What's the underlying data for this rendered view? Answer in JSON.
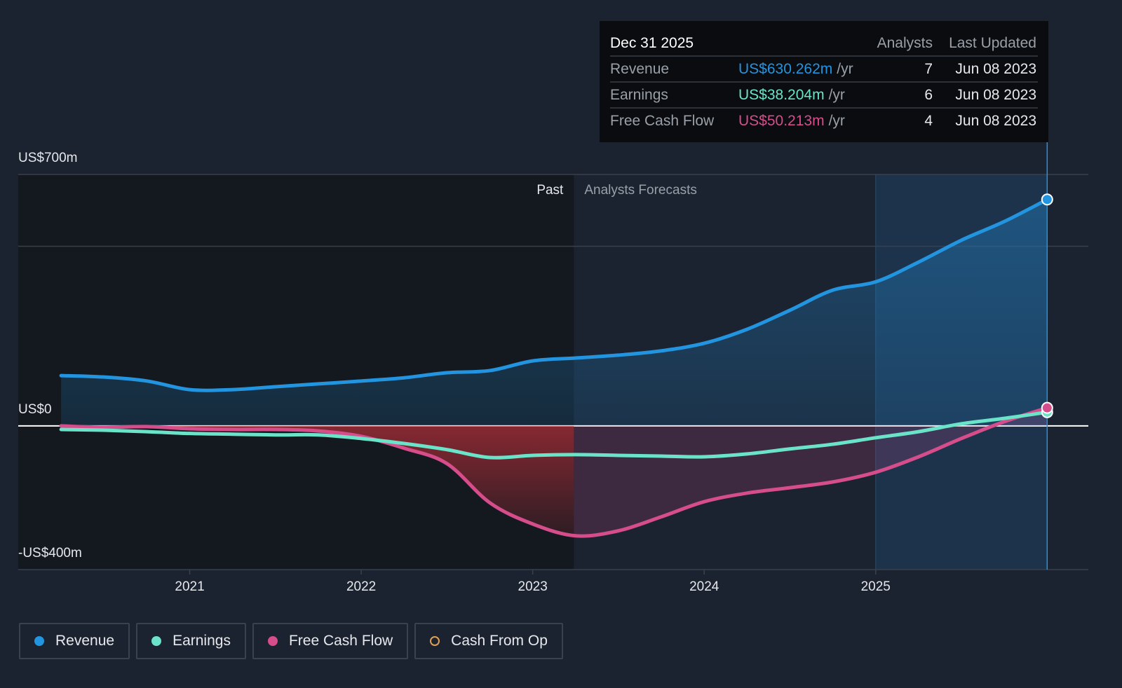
{
  "chart_data": {
    "type": "line",
    "x": [
      2020.25,
      2020.5,
      2020.75,
      2021,
      2021.25,
      2021.5,
      2021.75,
      2022,
      2022.25,
      2022.5,
      2022.75,
      2023,
      2023.25,
      2023.5,
      2023.75,
      2024,
      2024.25,
      2024.5,
      2024.75,
      2025,
      2025.25,
      2025.5,
      2025.75,
      2026
    ],
    "series": [
      {
        "name": "Revenue",
        "color": "#2394df",
        "area": true,
        "values": [
          140,
          136,
          125,
          101,
          101,
          109,
          117,
          125,
          134,
          148,
          154,
          181,
          189,
          197,
          209,
          230,
          269,
          322,
          378,
          401,
          456,
          517,
          569,
          630.262
        ]
      },
      {
        "name": "Earnings",
        "color": "#6be3c8",
        "values": [
          -10,
          -12,
          -16,
          -21,
          -23,
          -25,
          -25,
          -35,
          -49,
          -66,
          -88,
          -82,
          -80,
          -82,
          -84,
          -86,
          -78,
          -64,
          -51,
          -33,
          -16,
          6,
          21,
          38.204
        ]
      },
      {
        "name": "Free Cash Flow",
        "color": "#d64d8c",
        "area": true,
        "values": [
          0,
          -4,
          -2,
          -8,
          -10,
          -10,
          -14,
          -29,
          -62,
          -105,
          -214,
          -273,
          -306,
          -292,
          -253,
          -211,
          -187,
          -172,
          -156,
          -129,
          -86,
          -35,
          12,
          50.213
        ]
      },
      {
        "name": "Cash From Op",
        "color": "#e0a050",
        "values": [
          null,
          null,
          null,
          null,
          null,
          null,
          null,
          null,
          null,
          null,
          null,
          null,
          null,
          null,
          null,
          null,
          null,
          null,
          null,
          null,
          null,
          null,
          null,
          null
        ]
      }
    ],
    "xlim": [
      2020,
      2026.24
    ],
    "xticks": [
      2021,
      2022,
      2023,
      2024,
      2025
    ],
    "ylim": [
      -400,
      700
    ],
    "yticks": [
      {
        "value": 700,
        "label": "US$700m"
      },
      {
        "value": 0,
        "label": "US$0"
      },
      {
        "value": -400,
        "label": "-US$400m"
      }
    ],
    "ygrid": [
      500
    ],
    "forecast_start": 2023.24,
    "past_label": "Past",
    "forecast_label": "Analysts Forecasts",
    "highlight": [
      2025,
      2026
    ],
    "tooltip": {
      "title": "Dec 31 2025",
      "headers": [
        "Analysts",
        "Last Updated"
      ],
      "rows": [
        {
          "name": "Revenue",
          "value": "US$630.262m",
          "unit": "/yr",
          "analysts": 7,
          "updated": "Jun 08 2023"
        },
        {
          "name": "Earnings",
          "value": "US$38.204m",
          "unit": "/yr",
          "analysts": 6,
          "updated": "Jun 08 2023"
        },
        {
          "name": "Free Cash Flow",
          "value": "US$50.213m",
          "unit": "/yr",
          "analysts": 4,
          "updated": "Jun 08 2023"
        }
      ]
    }
  }
}
